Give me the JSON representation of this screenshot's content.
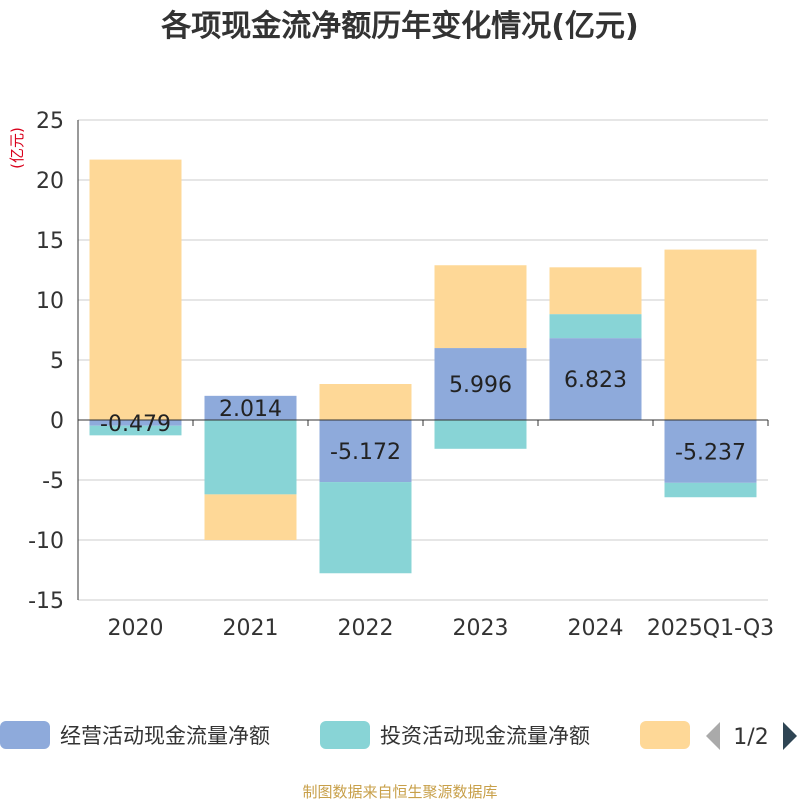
{
  "chart_data": {
    "type": "bar",
    "stacked": true,
    "title": "各项现金流净额历年变化情况(亿元)",
    "ylabel": "(亿元)",
    "xlabel": "",
    "ylim": [
      -15,
      25
    ],
    "yticks": [
      25,
      20,
      15,
      10,
      5,
      0,
      -5,
      -10,
      -15
    ],
    "grid": true,
    "categories": [
      "2020",
      "2021",
      "2022",
      "2023",
      "2024",
      "2025Q1-Q3"
    ],
    "series": [
      {
        "name": "经营活动现金流量净额",
        "color": "#8eaadb",
        "values": [
          -0.479,
          2.014,
          -5.172,
          5.996,
          6.823,
          -5.237
        ],
        "labels": [
          "-0.479",
          "2.014",
          "-5.172",
          "5.996",
          "6.823",
          "-5.237"
        ]
      },
      {
        "name": "投资活动现金流量净额",
        "color": "#88d4d6",
        "values": [
          -0.8,
          -6.2,
          -7.6,
          -2.4,
          2.0,
          -1.2
        ]
      },
      {
        "name": "",
        "color": "#fed897",
        "values": [
          21.7,
          -3.8,
          3.0,
          6.9,
          3.9,
          14.2
        ]
      }
    ],
    "legend_position": "bottom"
  },
  "legend": {
    "page_indicator": "1/2"
  },
  "source_note": "制图数据来自恒生聚源数据库"
}
